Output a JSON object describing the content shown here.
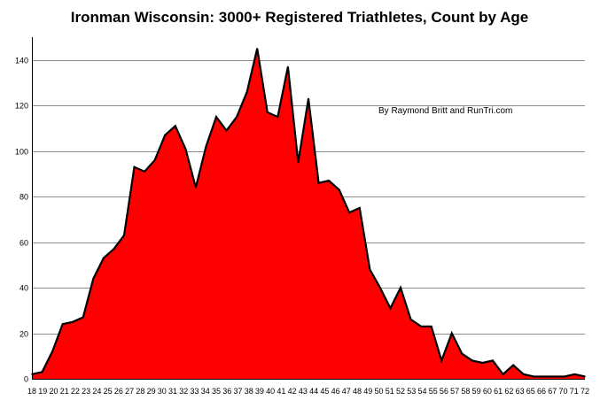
{
  "chart_data": {
    "type": "area",
    "title": "Ironman Wisconsin: 3000+ Registered Triathletes, Count by Age",
    "xlabel": "",
    "ylabel": "",
    "annotation": "By Raymond Britt and RunTri.com",
    "x": [
      18,
      19,
      20,
      21,
      22,
      23,
      24,
      25,
      26,
      27,
      28,
      29,
      30,
      31,
      32,
      33,
      34,
      35,
      36,
      37,
      38,
      39,
      40,
      41,
      42,
      43,
      44,
      45,
      46,
      47,
      48,
      49,
      50,
      51,
      52,
      53,
      54,
      55,
      56,
      57,
      58,
      59,
      60,
      61,
      62,
      63,
      64,
      65,
      66,
      67,
      68,
      69,
      70,
      71,
      72
    ],
    "xtick_labels": [
      "18",
      "19",
      "20",
      "21",
      "22",
      "23",
      "24",
      "25",
      "26",
      "27",
      "28",
      "29",
      "30",
      "31",
      "32",
      "33",
      "34",
      "35",
      "36",
      "37",
      "38",
      "39",
      "40",
      "41",
      "42",
      "43",
      "44",
      "45",
      "46",
      "47",
      "48",
      "49",
      "50",
      "51",
      "52",
      "53",
      "54",
      "55",
      "56",
      "57",
      "58",
      "59",
      "60",
      "61",
      "62",
      "63",
      "65",
      "66",
      "67",
      "70",
      "71",
      "72"
    ],
    "yticks": [
      0,
      20,
      40,
      60,
      80,
      100,
      120,
      140
    ],
    "ylim": [
      0,
      150
    ],
    "grid": true,
    "fill_color": "#ff0000",
    "line_color": "#000000",
    "series": [
      {
        "values": [
          2,
          3,
          12,
          24,
          25,
          27,
          44,
          53,
          57,
          63,
          93,
          91,
          96,
          107,
          111,
          101,
          84,
          102,
          115,
          109,
          115,
          126,
          145,
          117,
          115,
          137,
          95,
          123,
          86,
          87,
          83,
          73,
          75,
          48,
          40,
          31,
          40,
          26,
          23,
          23,
          8,
          20,
          11,
          8,
          7,
          8,
          2,
          6,
          2,
          1,
          1,
          1,
          1,
          2,
          1
        ]
      }
    ]
  }
}
